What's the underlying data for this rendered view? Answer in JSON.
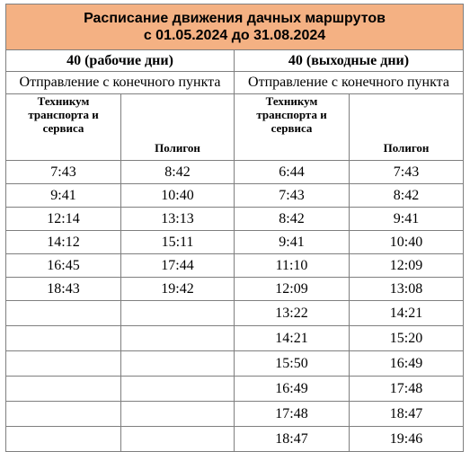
{
  "title": {
    "line1": "Расписание движения дачных маршрутов",
    "line2": "с 01.05.2024 до 31.08.2024"
  },
  "weekday": {
    "route": "40 (рабочие дни)",
    "departure": "Отправление с конечного пункта",
    "stop_a": "Техникум транспорта и сервиса",
    "stop_b": "Полигон",
    "times_a": [
      "7:43",
      "9:41",
      "12:14",
      "14:12",
      "16:45",
      "18:43"
    ],
    "times_b": [
      "8:42",
      "10:40",
      "13:13",
      "15:11",
      "17:44",
      "19:42"
    ]
  },
  "weekend": {
    "route": "40 (выходные дни)",
    "departure": "Отправление с конечного пункта",
    "stop_a": "Техникум транспорта и сервиса",
    "stop_b": "Полигон",
    "times_a": [
      "6:44",
      "7:43",
      "8:42",
      "9:41",
      "11:10",
      "12:09",
      "13:22",
      "14:21",
      "15:50",
      "16:49",
      "17:48",
      "18:47"
    ],
    "times_b": [
      "7:43",
      "8:42",
      "9:41",
      "10:40",
      "12:09",
      "13:08",
      "14:21",
      "15:20",
      "16:49",
      "17:48",
      "18:47",
      "19:46"
    ]
  }
}
